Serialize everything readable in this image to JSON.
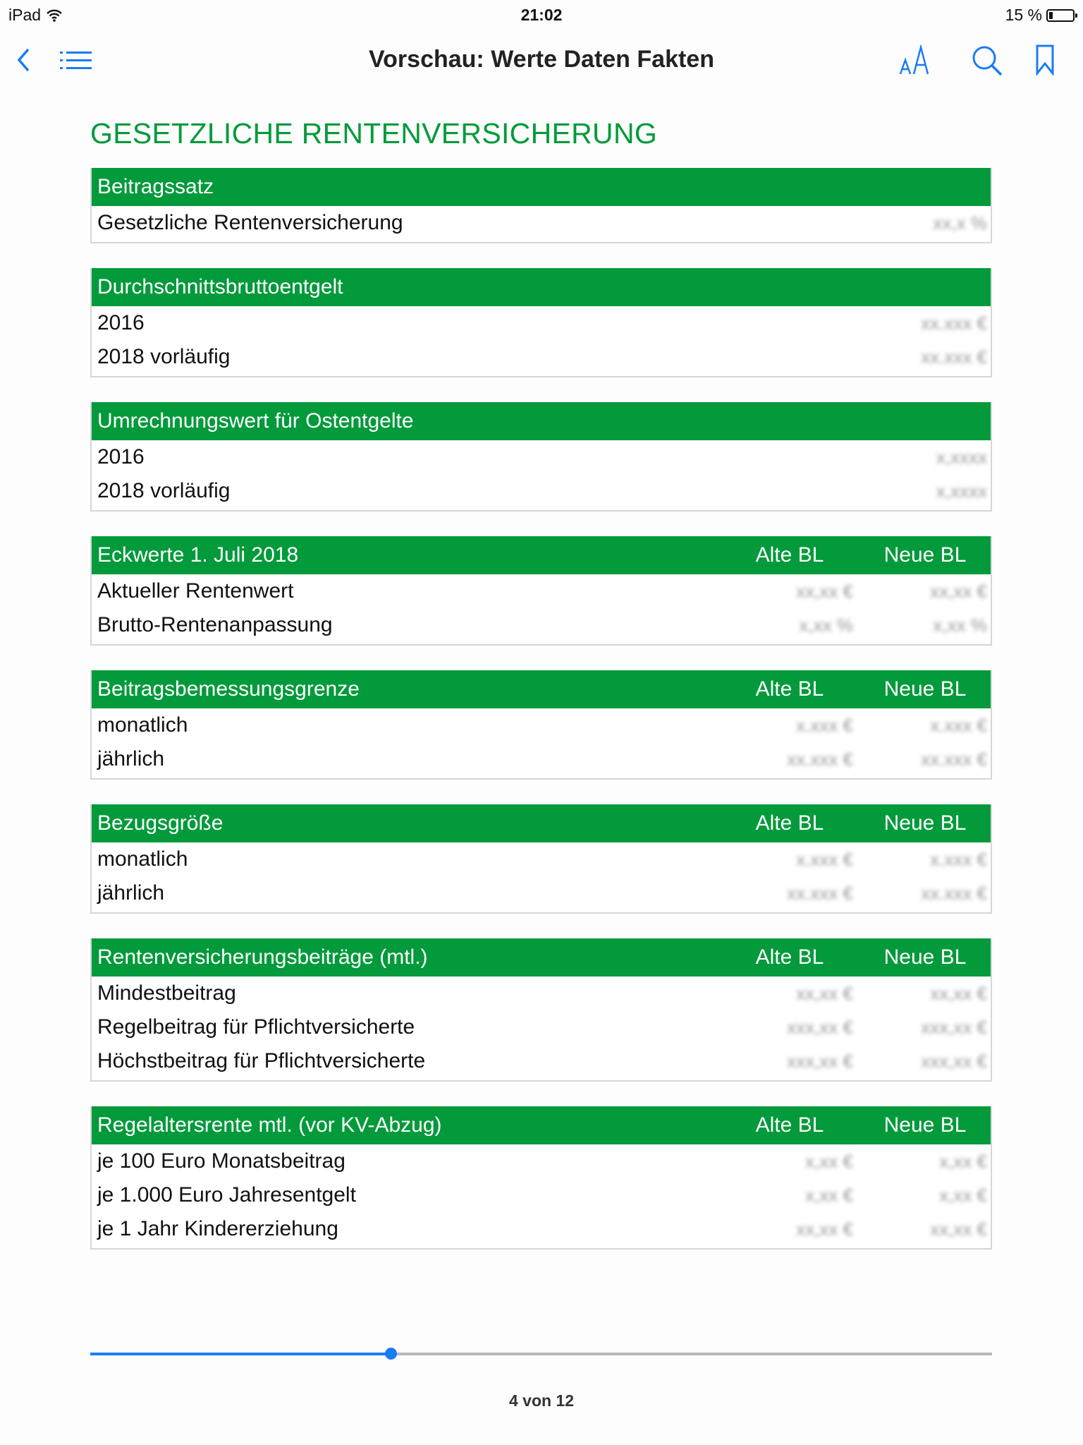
{
  "status_bar": {
    "device": "iPad",
    "time": "21:02",
    "battery": "15 %"
  },
  "nav": {
    "title": "Vorschau: Werte Daten Fakten",
    "icons": [
      "chevron-left-icon",
      "list-icon",
      "font-size-icon",
      "search-icon",
      "bookmark-icon"
    ]
  },
  "heading": "GESETZLICHE RENTENVERSICHERUNG",
  "accent_color": "#029a3b",
  "tables": [
    {
      "title": "Beitragssatz",
      "cols": [],
      "rows": [
        {
          "label": "Gesetzliche Rentenversicherung",
          "values": [
            "xx,x %"
          ]
        }
      ]
    },
    {
      "title": "Durchschnittsbruttoentgelt",
      "cols": [],
      "rows": [
        {
          "label": "2016",
          "values": [
            "xx.xxx €"
          ]
        },
        {
          "label": "2018 vorläufig",
          "values": [
            "xx.xxx €"
          ]
        }
      ]
    },
    {
      "title": "Umrechnungswert für Ostentgelte",
      "cols": [],
      "rows": [
        {
          "label": "2016",
          "values": [
            "x,xxxx"
          ]
        },
        {
          "label": "2018 vorläufig",
          "values": [
            "x,xxxx"
          ]
        }
      ]
    },
    {
      "title": "Eckwerte 1. Juli 2018",
      "cols": [
        "Alte BL",
        "Neue BL"
      ],
      "rows": [
        {
          "label": "Aktueller Rentenwert",
          "values": [
            "xx,xx €",
            "xx,xx €"
          ]
        },
        {
          "label": "Brutto-Rentenanpassung",
          "values": [
            "x,xx %",
            "x,xx %"
          ]
        }
      ]
    },
    {
      "title": "Beitragsbemessungsgrenze",
      "cols": [
        "Alte BL",
        "Neue BL"
      ],
      "rows": [
        {
          "label": "monatlich",
          "values": [
            "x.xxx €",
            "x.xxx €"
          ]
        },
        {
          "label": "jährlich",
          "values": [
            "xx.xxx €",
            "xx.xxx €"
          ]
        }
      ]
    },
    {
      "title": "Bezugsgröße",
      "cols": [
        "Alte BL",
        "Neue BL"
      ],
      "rows": [
        {
          "label": "monatlich",
          "values": [
            "x.xxx €",
            "x.xxx €"
          ]
        },
        {
          "label": "jährlich",
          "values": [
            "xx.xxx €",
            "xx.xxx €"
          ]
        }
      ]
    },
    {
      "title": "Rentenversicherungsbeiträge (mtl.)",
      "cols": [
        "Alte BL",
        "Neue BL"
      ],
      "rows": [
        {
          "label": "Mindestbeitrag",
          "values": [
            "xx,xx €",
            "xx,xx €"
          ]
        },
        {
          "label": "Regelbeitrag für Pflichtversicherte",
          "values": [
            "xxx,xx €",
            "xxx,xx €"
          ]
        },
        {
          "label": "Höchstbeitrag für Pflichtversicherte",
          "values": [
            "xxx,xx €",
            "xxx,xx €"
          ]
        }
      ]
    },
    {
      "title": "Regelaltersrente mtl. (vor KV-Abzug)",
      "cols": [
        "Alte BL",
        "Neue BL"
      ],
      "rows": [
        {
          "label": "je 100 Euro Monatsbeitrag",
          "values": [
            "x,xx €",
            "x,xx €"
          ]
        },
        {
          "label": "je 1.000 Euro Jahresentgelt",
          "values": [
            "x,xx €",
            "x,xx €"
          ]
        },
        {
          "label": "je 1 Jahr Kindererziehung",
          "values": [
            "xx,xx €",
            "xx,xx €"
          ]
        }
      ]
    }
  ],
  "pager": {
    "label": "4 von 12",
    "progress": 0.333
  }
}
